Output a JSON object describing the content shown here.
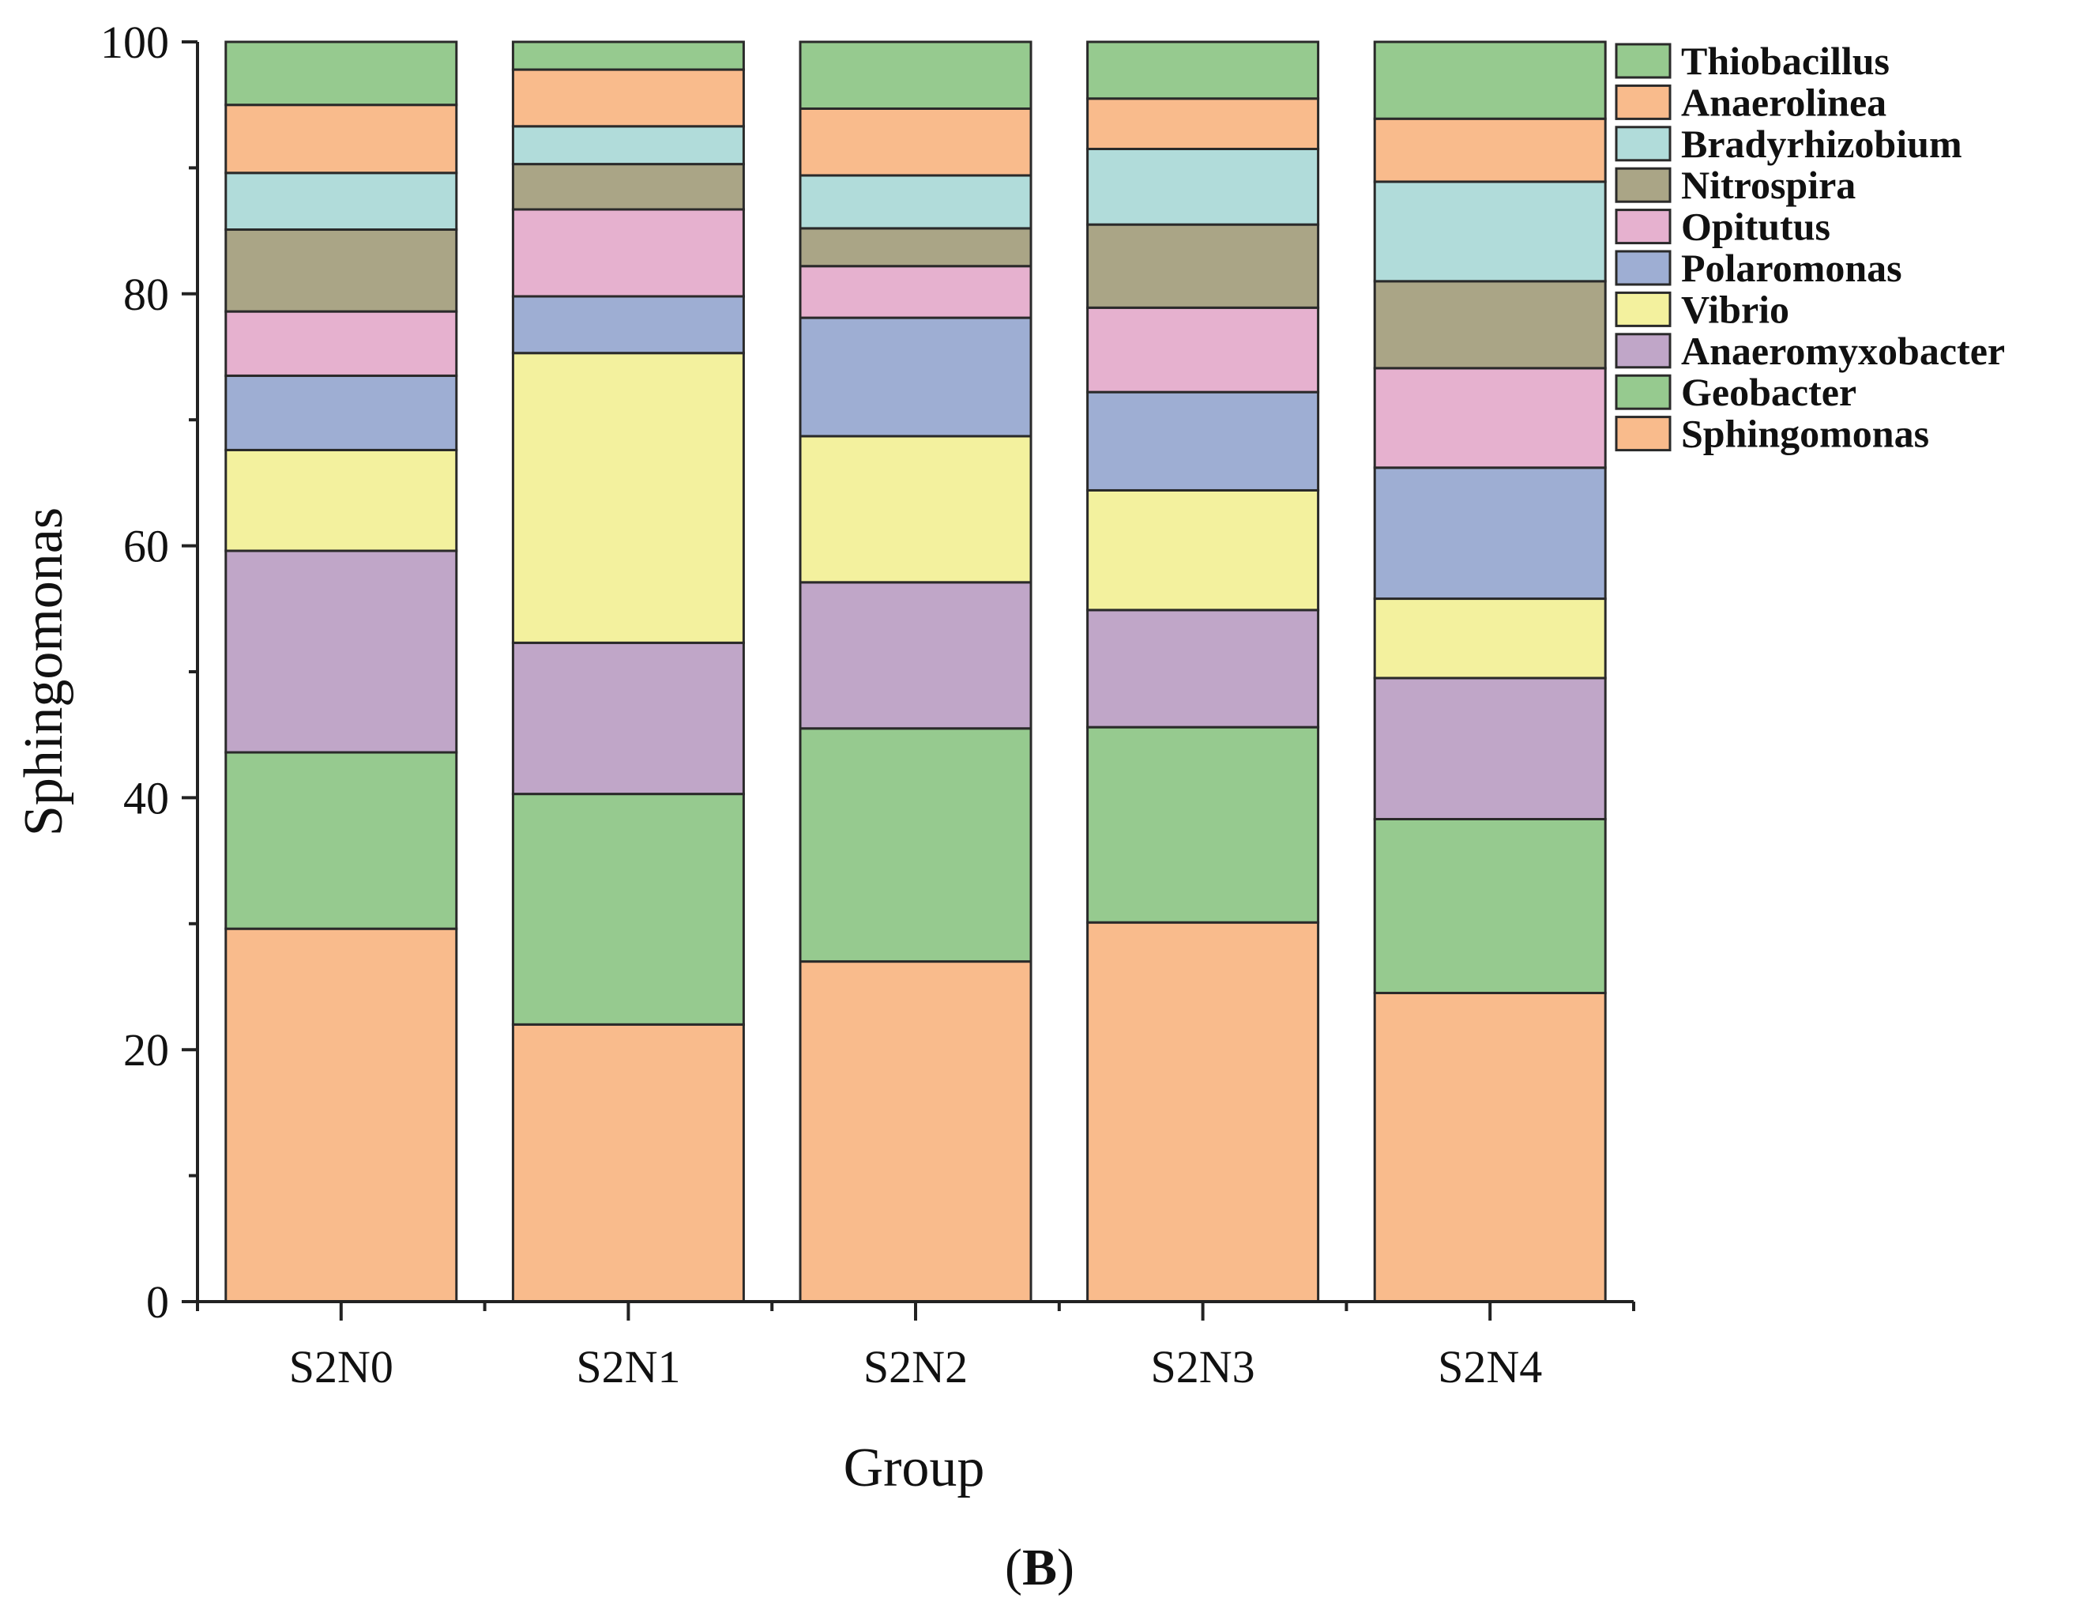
{
  "chart_data": {
    "type": "bar",
    "stacked": true,
    "title": "",
    "panel_label_open": "(",
    "panel_label_letter": "B",
    "panel_label_close": ")",
    "xlabel": "Group",
    "ylabel": "Sphingomonas",
    "ylim": [
      0,
      100
    ],
    "yticks": [
      "0",
      "20",
      "40",
      "60",
      "80",
      "100"
    ],
    "categories": [
      "S2N0",
      "S2N1",
      "S2N2",
      "S2N3",
      "S2N4"
    ],
    "legend_position": "top-right",
    "series": [
      {
        "name": "Sphingomonas",
        "color": "#F9BB8C",
        "values": [
          29.6,
          22.0,
          27.0,
          30.1,
          24.5
        ]
      },
      {
        "name": "Geobacter",
        "color": "#96CA8F",
        "values": [
          14.0,
          18.3,
          18.5,
          15.5,
          13.8
        ]
      },
      {
        "name": "Anaeromyxobacter",
        "color": "#C0A6C8",
        "values": [
          16.0,
          12.0,
          11.6,
          9.3,
          11.2
        ]
      },
      {
        "name": "Vibrio",
        "color": "#F3F19E",
        "values": [
          8.0,
          23.0,
          11.6,
          9.5,
          6.3
        ]
      },
      {
        "name": "Polaromonas",
        "color": "#9EAED3",
        "values": [
          5.9,
          4.5,
          9.4,
          7.8,
          10.4
        ]
      },
      {
        "name": "Opitutus",
        "color": "#E6B1CF",
        "values": [
          5.1,
          6.9,
          4.1,
          6.7,
          7.9
        ]
      },
      {
        "name": "Nitrospira",
        "color": "#AAA586",
        "values": [
          6.5,
          3.6,
          3.0,
          6.6,
          6.9
        ]
      },
      {
        "name": "Bradyrhizobium",
        "color": "#B1DCDA",
        "values": [
          4.5,
          3.0,
          4.2,
          6.0,
          7.9
        ]
      },
      {
        "name": "Anaerolinea",
        "color": "#F9BB8C",
        "values": [
          5.4,
          4.5,
          5.3,
          4.0,
          5.0
        ]
      },
      {
        "name": "Thiobacillus",
        "color": "#96CA8F",
        "values": [
          5.0,
          2.2,
          5.3,
          4.5,
          6.1
        ]
      }
    ]
  }
}
